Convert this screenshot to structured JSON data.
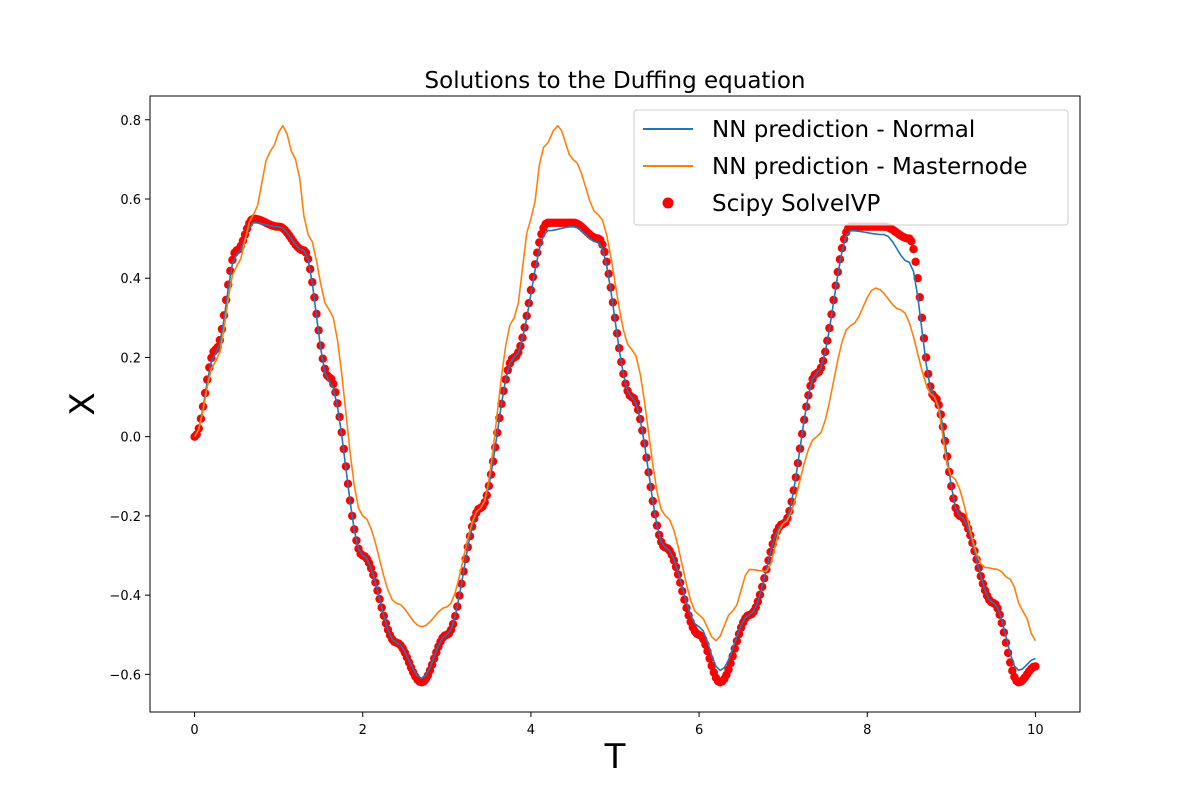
{
  "chart_data": {
    "type": "line",
    "title": "Solutions to the Duffing equation",
    "xlabel": "T",
    "ylabel": "X",
    "xlim": [
      -0.53,
      10.53
    ],
    "ylim": [
      -0.695,
      0.86
    ],
    "xticks": [
      0,
      2,
      4,
      6,
      8,
      10
    ],
    "xtick_labels": [
      "0",
      "2",
      "4",
      "6",
      "8",
      "10"
    ],
    "yticks": [
      -0.6,
      -0.4,
      -0.2,
      0.0,
      0.2,
      0.4,
      0.6,
      0.8
    ],
    "ytick_labels": [
      "−0.6",
      "−0.4",
      "−0.2",
      "0.0",
      "0.2",
      "0.4",
      "0.6",
      "0.8"
    ],
    "grid": false,
    "legend_position": "top-right",
    "series": [
      {
        "name": "NN prediction - Normal",
        "kind": "line",
        "color": "#1f77b4",
        "points": [
          [
            0,
            0
          ],
          [
            0.25,
            0.21
          ],
          [
            0.5,
            0.46
          ],
          [
            0.7,
            0.54
          ],
          [
            1.0,
            0.53
          ],
          [
            1.3,
            0.47
          ],
          [
            1.6,
            0.14
          ],
          [
            2.0,
            -0.3
          ],
          [
            2.4,
            -0.52
          ],
          [
            2.7,
            -0.61
          ],
          [
            3.0,
            -0.5
          ],
          [
            3.4,
            -0.18
          ],
          [
            3.8,
            0.2
          ],
          [
            4.2,
            0.52
          ],
          [
            4.5,
            0.53
          ],
          [
            4.8,
            0.49
          ],
          [
            5.2,
            0.1
          ],
          [
            5.6,
            -0.28
          ],
          [
            6.0,
            -0.48
          ],
          [
            6.25,
            -0.59
          ],
          [
            6.6,
            -0.45
          ],
          [
            7.0,
            -0.22
          ],
          [
            7.4,
            0.16
          ],
          [
            7.8,
            0.52
          ],
          [
            8.2,
            0.51
          ],
          [
            8.5,
            0.44
          ],
          [
            8.8,
            0.1
          ],
          [
            9.1,
            -0.2
          ],
          [
            9.5,
            -0.42
          ],
          [
            9.8,
            -0.59
          ],
          [
            10.0,
            -0.56
          ]
        ]
      },
      {
        "name": "NN prediction - Masternode",
        "kind": "line",
        "color": "#ff7f0e",
        "points": [
          [
            0,
            0
          ],
          [
            0.25,
            0.19
          ],
          [
            0.5,
            0.43
          ],
          [
            0.7,
            0.56
          ],
          [
            0.9,
            0.72
          ],
          [
            1.05,
            0.785
          ],
          [
            1.2,
            0.7
          ],
          [
            1.35,
            0.51
          ],
          [
            1.6,
            0.32
          ],
          [
            2.0,
            -0.2
          ],
          [
            2.4,
            -0.42
          ],
          [
            2.7,
            -0.48
          ],
          [
            3.0,
            -0.43
          ],
          [
            3.4,
            -0.18
          ],
          [
            3.8,
            0.3
          ],
          [
            4.0,
            0.55
          ],
          [
            4.15,
            0.73
          ],
          [
            4.32,
            0.785
          ],
          [
            4.5,
            0.7
          ],
          [
            4.8,
            0.56
          ],
          [
            5.2,
            0.22
          ],
          [
            5.6,
            -0.2
          ],
          [
            6.0,
            -0.45
          ],
          [
            6.2,
            -0.515
          ],
          [
            6.4,
            -0.44
          ],
          [
            6.6,
            -0.335
          ],
          [
            6.8,
            -0.34
          ],
          [
            7.0,
            -0.22
          ],
          [
            7.4,
            0.0
          ],
          [
            7.8,
            0.28
          ],
          [
            8.1,
            0.375
          ],
          [
            8.4,
            0.32
          ],
          [
            8.8,
            0.1
          ],
          [
            9.0,
            -0.1
          ],
          [
            9.4,
            -0.33
          ],
          [
            9.55,
            -0.335
          ],
          [
            9.7,
            -0.36
          ],
          [
            9.85,
            -0.44
          ],
          [
            10.0,
            -0.515
          ]
        ]
      },
      {
        "name": "Scipy SolveIVP",
        "kind": "scatter",
        "color": "#ff0000",
        "points": [
          [
            0,
            0
          ],
          [
            0.25,
            0.22
          ],
          [
            0.5,
            0.47
          ],
          [
            0.7,
            0.55
          ],
          [
            1.0,
            0.53
          ],
          [
            1.3,
            0.47
          ],
          [
            1.6,
            0.15
          ],
          [
            2.0,
            -0.3
          ],
          [
            2.4,
            -0.52
          ],
          [
            2.7,
            -0.62
          ],
          [
            3.0,
            -0.5
          ],
          [
            3.4,
            -0.18
          ],
          [
            3.8,
            0.2
          ],
          [
            4.2,
            0.54
          ],
          [
            4.5,
            0.54
          ],
          [
            4.8,
            0.5
          ],
          [
            5.2,
            0.1
          ],
          [
            5.6,
            -0.28
          ],
          [
            6.0,
            -0.5
          ],
          [
            6.25,
            -0.62
          ],
          [
            6.6,
            -0.45
          ],
          [
            7.0,
            -0.22
          ],
          [
            7.4,
            0.16
          ],
          [
            7.8,
            0.53
          ],
          [
            8.2,
            0.53
          ],
          [
            8.5,
            0.5
          ],
          [
            8.8,
            0.1
          ],
          [
            9.1,
            -0.2
          ],
          [
            9.5,
            -0.42
          ],
          [
            9.8,
            -0.62
          ],
          [
            10.0,
            -0.58
          ]
        ]
      }
    ]
  }
}
